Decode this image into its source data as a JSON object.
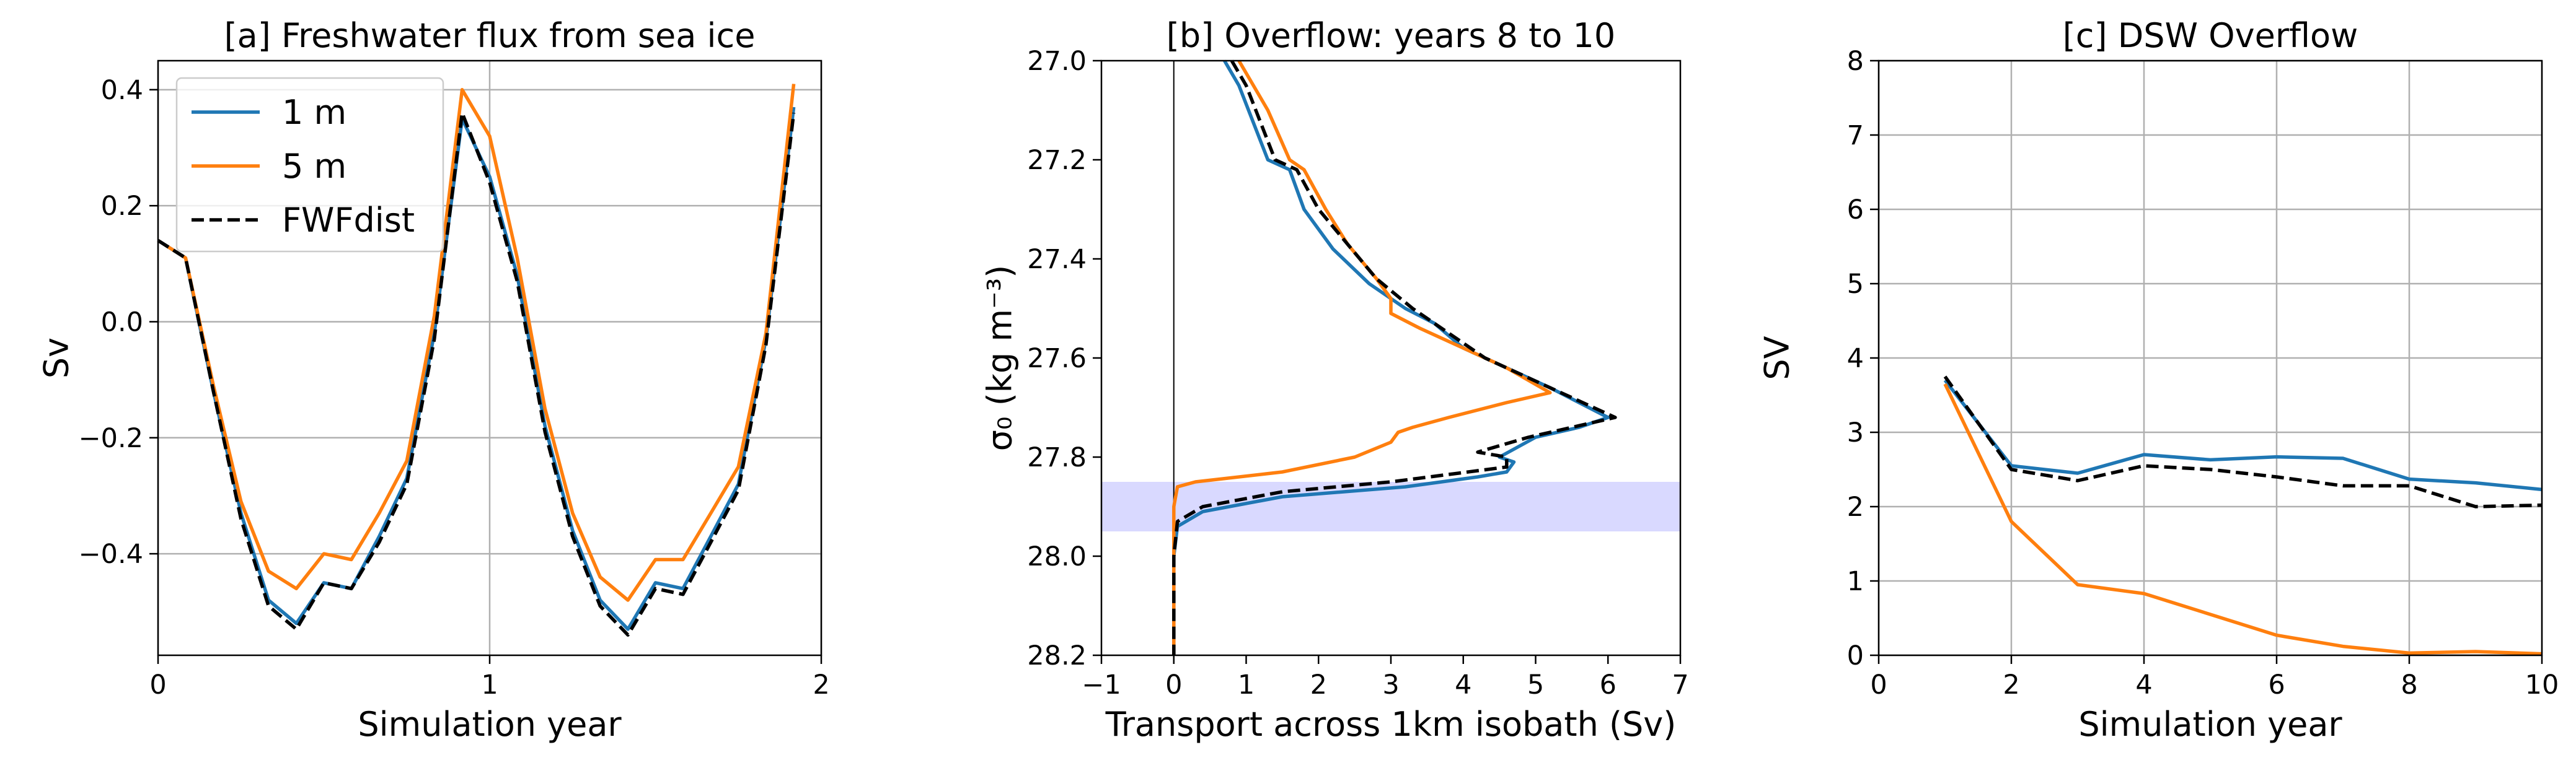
{
  "colors": {
    "series_1m": "#1f77b4",
    "series_5m": "#ff7f0e",
    "series_fwfdist": "#000000",
    "grid": "#b0b0b0",
    "band": "#0000ff"
  },
  "chart_data": [
    {
      "type": "line",
      "title": "[a] Freshwater flux from sea ice",
      "xlabel": "Simulation year",
      "ylabel": "Sv",
      "xlim": [
        0,
        2
      ],
      "ylim": [
        -0.575,
        0.45
      ],
      "x_ticks": [
        0,
        1,
        2
      ],
      "x_tick_labels": [
        "0",
        "1",
        "2"
      ],
      "y_ticks": [
        0.4,
        0.2,
        0.0,
        -0.2,
        -0.4
      ],
      "y_tick_labels": [
        "0.4",
        "0.2",
        "0.0",
        "−0.2",
        "−0.4"
      ],
      "grid": true,
      "legend": "top-left",
      "series": [
        {
          "name": "1 m",
          "color_key": "series_1m",
          "dash": "solid",
          "x": [
            0,
            0.083,
            0.167,
            0.25,
            0.333,
            0.417,
            0.5,
            0.583,
            0.667,
            0.75,
            0.833,
            0.917,
            1.0,
            1.083,
            1.167,
            1.25,
            1.333,
            1.417,
            1.5,
            1.583,
            1.667,
            1.75,
            1.833,
            1.917
          ],
          "y": [
            0.14,
            0.11,
            -0.12,
            -0.33,
            -0.48,
            -0.52,
            -0.45,
            -0.46,
            -0.37,
            -0.27,
            -0.02,
            0.35,
            0.25,
            0.08,
            -0.18,
            -0.36,
            -0.48,
            -0.53,
            -0.45,
            -0.46,
            -0.37,
            -0.28,
            -0.03,
            0.37
          ]
        },
        {
          "name": "5 m",
          "color_key": "series_5m",
          "dash": "solid",
          "x": [
            0,
            0.083,
            0.167,
            0.25,
            0.333,
            0.417,
            0.5,
            0.583,
            0.667,
            0.75,
            0.833,
            0.917,
            1.0,
            1.083,
            1.167,
            1.25,
            1.333,
            1.417,
            1.5,
            1.583,
            1.667,
            1.75,
            1.833,
            1.917
          ],
          "y": [
            0.14,
            0.11,
            -0.11,
            -0.31,
            -0.43,
            -0.46,
            -0.4,
            -0.41,
            -0.33,
            -0.24,
            0.01,
            0.4,
            0.32,
            0.11,
            -0.15,
            -0.33,
            -0.44,
            -0.48,
            -0.41,
            -0.41,
            -0.33,
            -0.25,
            -0.02,
            0.41
          ]
        },
        {
          "name": "FWFdist",
          "color_key": "series_fwfdist",
          "dash": "dashed",
          "x": [
            0,
            0.083,
            0.167,
            0.25,
            0.333,
            0.417,
            0.5,
            0.583,
            0.667,
            0.75,
            0.833,
            0.917,
            1.0,
            1.083,
            1.167,
            1.25,
            1.333,
            1.417,
            1.5,
            1.583,
            1.667,
            1.75,
            1.833,
            1.917
          ],
          "y": [
            0.14,
            0.11,
            -0.12,
            -0.34,
            -0.49,
            -0.53,
            -0.45,
            -0.46,
            -0.38,
            -0.28,
            -0.03,
            0.36,
            0.24,
            0.07,
            -0.19,
            -0.37,
            -0.49,
            -0.54,
            -0.46,
            -0.47,
            -0.38,
            -0.29,
            -0.04,
            0.36
          ]
        }
      ]
    },
    {
      "type": "line",
      "title": "[b] Overflow: years 8 to 10",
      "xlabel": "Transport across 1km isobath (Sv)",
      "ylabel": "σ₀ (kg m⁻³)",
      "xlim": [
        -1,
        7
      ],
      "ylim": [
        28.2,
        27.0
      ],
      "y_inverted": true,
      "x_ticks": [
        -1,
        0,
        1,
        2,
        3,
        4,
        5,
        6,
        7
      ],
      "x_tick_labels": [
        "−1",
        "0",
        "1",
        "2",
        "3",
        "4",
        "5",
        "6",
        "7"
      ],
      "y_ticks": [
        27.0,
        27.2,
        27.4,
        27.6,
        27.8,
        28.0,
        28.2
      ],
      "y_tick_labels": [
        "27.0",
        "27.2",
        "27.4",
        "27.6",
        "27.8",
        "28.0",
        "28.2"
      ],
      "grid": false,
      "vertical_line_x": 0,
      "shaded_band_y": [
        27.85,
        27.95
      ],
      "series": [
        {
          "name": "1 m",
          "color_key": "series_1m",
          "dash": "solid",
          "x": [
            0.7,
            0.9,
            1.3,
            1.6,
            1.8,
            2.2,
            2.7,
            3.2,
            3.6,
            4.0,
            4.6,
            5.2,
            5.6,
            6.0,
            5.6,
            5.0,
            4.5,
            4.7,
            4.6,
            4.2,
            3.2,
            1.5,
            0.4,
            0.05,
            0,
            0
          ],
          "y": [
            27.0,
            27.05,
            27.2,
            27.22,
            27.3,
            27.38,
            27.45,
            27.5,
            27.53,
            27.58,
            27.62,
            27.66,
            27.69,
            27.72,
            27.74,
            27.76,
            27.8,
            27.81,
            27.83,
            27.84,
            27.86,
            27.88,
            27.91,
            27.94,
            28.0,
            28.2
          ]
        },
        {
          "name": "5 m",
          "color_key": "series_5m",
          "dash": "solid",
          "x": [
            0.9,
            1.3,
            1.6,
            1.8,
            2.1,
            2.4,
            2.8,
            3.0,
            3.0,
            3.4,
            4.0,
            4.6,
            5.2,
            4.6,
            3.8,
            3.3,
            3.1,
            3.0,
            2.5,
            1.5,
            0.3,
            0.05,
            0,
            0
          ],
          "y": [
            27.0,
            27.1,
            27.2,
            27.22,
            27.3,
            27.37,
            27.44,
            27.48,
            27.51,
            27.54,
            27.58,
            27.62,
            27.67,
            27.69,
            27.72,
            27.74,
            27.75,
            27.77,
            27.8,
            27.83,
            27.85,
            27.86,
            27.9,
            28.2
          ]
        },
        {
          "name": "FWFdist",
          "color_key": "series_fwfdist",
          "dash": "dashed",
          "x": [
            0.8,
            1.0,
            1.4,
            1.7,
            2.0,
            2.4,
            2.8,
            3.3,
            3.8,
            4.3,
            4.9,
            5.5,
            6.1,
            5.5,
            4.9,
            4.2,
            4.6,
            4.6,
            3.0,
            1.5,
            0.4,
            0.05,
            0,
            0
          ],
          "y": [
            27.0,
            27.05,
            27.2,
            27.22,
            27.3,
            27.37,
            27.44,
            27.5,
            27.55,
            27.6,
            27.64,
            27.68,
            27.72,
            27.74,
            27.76,
            27.79,
            27.8,
            27.82,
            27.85,
            27.87,
            27.9,
            27.93,
            28.0,
            28.2
          ]
        }
      ]
    },
    {
      "type": "line",
      "title": "[c] DSW Overflow",
      "xlabel": "Simulation year",
      "ylabel": "SV",
      "xlim": [
        0,
        10
      ],
      "ylim": [
        0,
        8
      ],
      "x_ticks": [
        0,
        2,
        4,
        6,
        8,
        10
      ],
      "x_tick_labels": [
        "0",
        "2",
        "4",
        "6",
        "8",
        "10"
      ],
      "y_ticks": [
        0,
        1,
        2,
        3,
        4,
        5,
        6,
        7,
        8
      ],
      "y_tick_labels": [
        "0",
        "1",
        "2",
        "3",
        "4",
        "5",
        "6",
        "7",
        "8"
      ],
      "grid": true,
      "series": [
        {
          "name": "1 m",
          "color_key": "series_1m",
          "dash": "solid",
          "x": [
            1,
            2,
            3,
            4,
            5,
            6,
            7,
            8,
            9,
            10
          ],
          "y": [
            3.7,
            2.55,
            2.45,
            2.7,
            2.63,
            2.67,
            2.65,
            2.37,
            2.32,
            2.23
          ]
        },
        {
          "name": "5 m",
          "color_key": "series_5m",
          "dash": "solid",
          "x": [
            1,
            2,
            3,
            4,
            5,
            6,
            7,
            8,
            9,
            10
          ],
          "y": [
            3.65,
            1.8,
            0.95,
            0.83,
            0.55,
            0.27,
            0.12,
            0.03,
            0.05,
            0.02
          ]
        },
        {
          "name": "FWFdist",
          "color_key": "series_fwfdist",
          "dash": "dashed",
          "x": [
            1,
            2,
            3,
            4,
            5,
            6,
            7,
            8,
            9,
            10
          ],
          "y": [
            3.75,
            2.5,
            2.35,
            2.55,
            2.5,
            2.4,
            2.28,
            2.28,
            2.0,
            2.02
          ]
        }
      ]
    }
  ]
}
